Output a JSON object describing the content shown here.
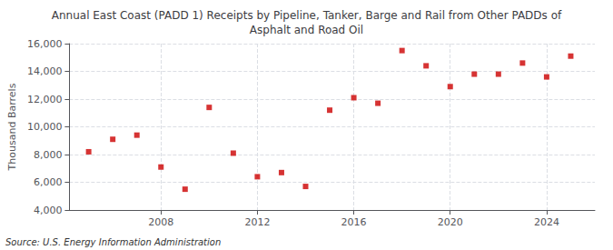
{
  "chart_data": {
    "type": "scatter",
    "title": "Annual East Coast (PADD 1) Receipts by Pipeline, Tanker, Barge and Rail from Other PADDs of\nAsphalt and Road Oil",
    "ylabel": "Thousand Barrels",
    "source": "Source: U.S. Energy Information Administration",
    "x": [
      2005,
      2006,
      2007,
      2008,
      2009,
      2010,
      2011,
      2012,
      2013,
      2014,
      2015,
      2016,
      2017,
      2018,
      2019,
      2020,
      2021,
      2022,
      2023,
      2024,
      2025
    ],
    "values": [
      8200,
      9100,
      9400,
      7100,
      5500,
      11400,
      8100,
      6400,
      6700,
      5700,
      11200,
      12100,
      11700,
      15500,
      14400,
      12900,
      13800,
      13800,
      14600,
      13600,
      15100
    ],
    "color": "#cc0000",
    "marker": "square",
    "xlim": [
      2004.2,
      2026.0
    ],
    "xticks": [
      2008,
      2012,
      2016,
      2020,
      2024
    ],
    "ylim": [
      4000,
      16000
    ],
    "yticks": [
      {
        "value": 4000,
        "label": "4,000"
      },
      {
        "value": 6000,
        "label": "6,000"
      },
      {
        "value": 8000,
        "label": "8,000"
      },
      {
        "value": 10000,
        "label": "10,000"
      },
      {
        "value": 12000,
        "label": "12,000"
      },
      {
        "value": 14000,
        "label": "14,000"
      },
      {
        "value": 16000,
        "label": "16,000"
      }
    ],
    "grid": true
  }
}
